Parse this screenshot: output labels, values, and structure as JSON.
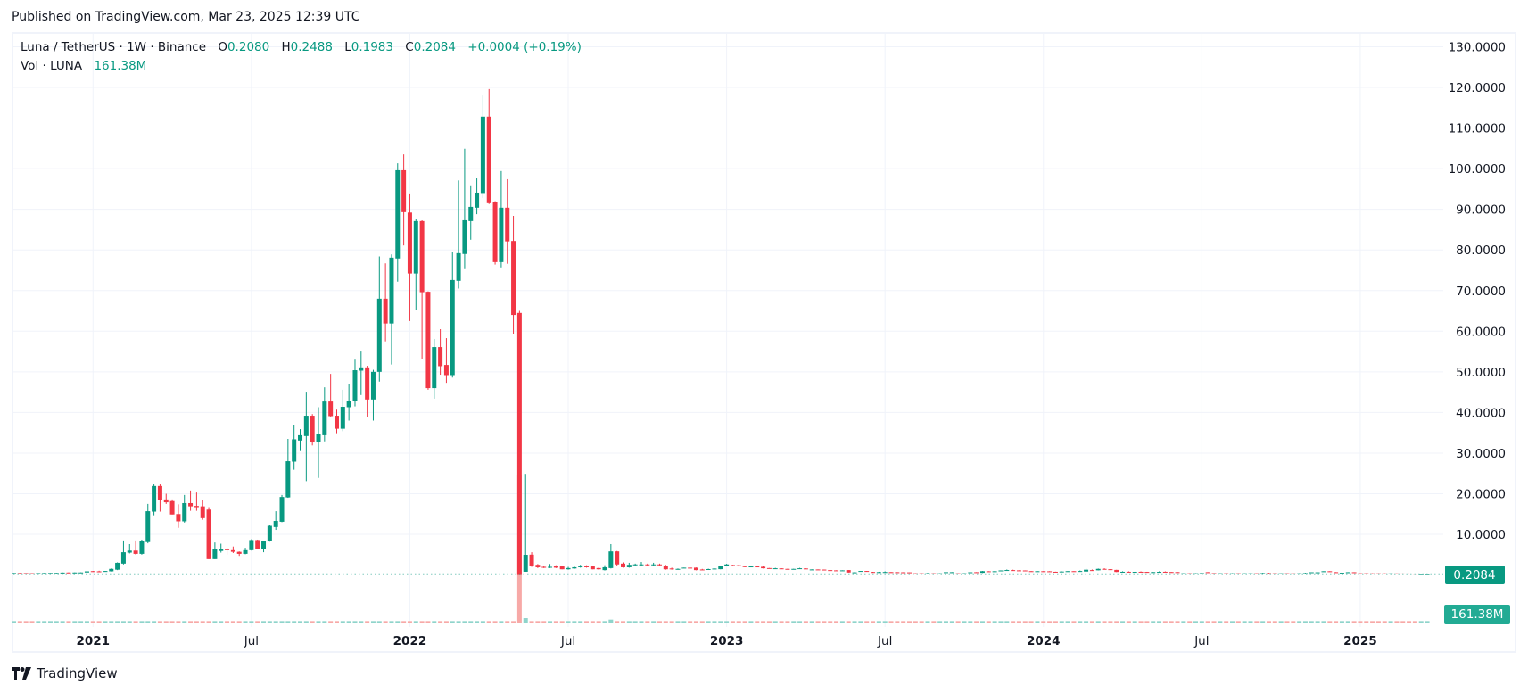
{
  "header": {
    "published": "Published on TradingView.com, Mar 23, 2025 12:39 UTC"
  },
  "legend": {
    "symbol": "Luna / TetherUS · 1W · Binance",
    "o_label": "O",
    "o_value": "0.2080",
    "h_label": "H",
    "h_value": "0.2488",
    "l_label": "L",
    "l_value": "0.1983",
    "c_label": "C",
    "c_value": "0.2084",
    "change": "+0.0004 (+0.19%)",
    "vol_label": "Vol · LUNA",
    "vol_value": "161.38M"
  },
  "price_badge": {
    "text": "0.2084",
    "color": "#089981"
  },
  "volume_badge": {
    "text": "161.38M",
    "color": "#22ab94"
  },
  "brand": {
    "name": "TradingView"
  },
  "colors": {
    "up": "#089981",
    "down": "#f23645",
    "vol_up": "#8fd4cb",
    "vol_down": "#f7a9a7",
    "grid": "#f0f3fa"
  },
  "chart_data": {
    "type": "candlestick",
    "title": "Luna / TetherUS · 1W · Binance",
    "interval": "1W",
    "ylim": [
      0,
      130
    ],
    "y_ticks": [
      "130.0000",
      "120.0000",
      "110.0000",
      "100.0000",
      "90.0000",
      "80.0000",
      "70.0000",
      "60.0000",
      "50.0000",
      "40.0000",
      "30.0000",
      "20.0000",
      "10.0000"
    ],
    "y_tick_values": [
      130,
      120,
      110,
      100,
      90,
      80,
      70,
      60,
      50,
      40,
      30,
      20,
      10
    ],
    "x_ticks": [
      {
        "label": "2021",
        "candle": 13,
        "year": true
      },
      {
        "label": "Jul",
        "candle": 39,
        "year": false
      },
      {
        "label": "2022",
        "candle": 65,
        "year": true
      },
      {
        "label": "Jul",
        "candle": 91,
        "year": false
      },
      {
        "label": "2023",
        "candle": 117,
        "year": true
      },
      {
        "label": "Jul",
        "candle": 143,
        "year": false
      },
      {
        "label": "2024",
        "candle": 169,
        "year": true
      },
      {
        "label": "Jul",
        "candle": 195,
        "year": false
      },
      {
        "label": "2025",
        "candle": 221,
        "year": true
      }
    ],
    "last_price": 0.2084,
    "volume_default": 1,
    "volume_overrides": {
      "83": 100,
      "84": 3,
      "98": 2
    },
    "candles_ohlc": [
      [
        0.45,
        0.5,
        0.42,
        0.48
      ],
      [
        0.48,
        0.5,
        0.42,
        0.44
      ],
      [
        0.46,
        0.48,
        0.4,
        0.42
      ],
      [
        0.44,
        0.46,
        0.38,
        0.4
      ],
      [
        0.4,
        0.48,
        0.38,
        0.46
      ],
      [
        0.44,
        0.5,
        0.42,
        0.48
      ],
      [
        0.46,
        0.5,
        0.44,
        0.49
      ],
      [
        0.48,
        0.52,
        0.46,
        0.5
      ],
      [
        0.5,
        0.62,
        0.48,
        0.6
      ],
      [
        0.62,
        0.64,
        0.56,
        0.58
      ],
      [
        0.58,
        0.64,
        0.56,
        0.62
      ],
      [
        0.6,
        0.66,
        0.58,
        0.63
      ],
      [
        0.62,
        0.95,
        0.6,
        0.9
      ],
      [
        0.95,
        1.0,
        0.78,
        0.82
      ],
      [
        0.9,
        1.05,
        0.8,
        0.86
      ],
      [
        0.86,
        1.0,
        0.82,
        0.98
      ],
      [
        0.9,
        1.6,
        0.86,
        1.5
      ],
      [
        1.3,
        3.1,
        1.2,
        3.0
      ],
      [
        2.8,
        8.5,
        2.6,
        5.6
      ],
      [
        5.5,
        7.6,
        5.3,
        6.0
      ],
      [
        6.0,
        8.5,
        5.0,
        5.2
      ],
      [
        5.2,
        8.7,
        5.0,
        8.3
      ],
      [
        8.1,
        17.5,
        7.8,
        15.7
      ],
      [
        15.6,
        22.3,
        14.7,
        21.9
      ],
      [
        21.9,
        22.3,
        15.6,
        18.4
      ],
      [
        18.6,
        20.0,
        17.5,
        17.9
      ],
      [
        18.2,
        18.6,
        14.9,
        14.9
      ],
      [
        15.0,
        17.4,
        11.6,
        13.2
      ],
      [
        13.2,
        19.7,
        12.9,
        17.7
      ],
      [
        17.7,
        20.8,
        15.8,
        16.9
      ],
      [
        17.0,
        20.3,
        15.8,
        16.7
      ],
      [
        16.9,
        18.5,
        13.6,
        14.0
      ],
      [
        16.1,
        16.7,
        3.9,
        3.9
      ],
      [
        3.9,
        8.0,
        3.9,
        6.3
      ],
      [
        5.9,
        7.7,
        5.5,
        6.3
      ],
      [
        6.4,
        6.7,
        5.0,
        6.1
      ],
      [
        6.1,
        7.0,
        5.4,
        5.7
      ],
      [
        5.7,
        5.8,
        4.7,
        5.2
      ],
      [
        5.2,
        6.7,
        5.1,
        6.1
      ],
      [
        6.1,
        8.8,
        6.0,
        8.6
      ],
      [
        8.6,
        8.7,
        6.3,
        6.4
      ],
      [
        6.4,
        8.4,
        5.6,
        8.3
      ],
      [
        8.3,
        12.3,
        8.2,
        12.1
      ],
      [
        11.8,
        15.7,
        11.1,
        13.3
      ],
      [
        13.1,
        19.7,
        13.0,
        19.2
      ],
      [
        19.1,
        33.5,
        19.0,
        28.0
      ],
      [
        27.9,
        36.9,
        25.9,
        33.4
      ],
      [
        33.1,
        35.9,
        30.5,
        34.4
      ],
      [
        34.2,
        44.9,
        23.1,
        39.2
      ],
      [
        39.2,
        39.6,
        31.9,
        32.7
      ],
      [
        32.7,
        41.3,
        23.9,
        34.6
      ],
      [
        34.4,
        46.2,
        32.9,
        42.7
      ],
      [
        42.7,
        49.5,
        39.0,
        39.1
      ],
      [
        39.2,
        40.7,
        34.9,
        36.0
      ],
      [
        36.0,
        45.6,
        35.4,
        41.4
      ],
      [
        41.3,
        46.9,
        38.0,
        42.9
      ],
      [
        42.8,
        53.0,
        41.5,
        50.4
      ],
      [
        50.3,
        55.0,
        44.3,
        51.1
      ],
      [
        51.1,
        51.5,
        38.8,
        43.2
      ],
      [
        43.2,
        50.5,
        38.0,
        50.0
      ],
      [
        50.0,
        78.4,
        47.6,
        68.0
      ],
      [
        68.0,
        76.7,
        57.5,
        61.9
      ],
      [
        61.9,
        78.9,
        51.8,
        78.1
      ],
      [
        77.9,
        101.3,
        72.2,
        99.6
      ],
      [
        99.6,
        103.5,
        81.1,
        89.3
      ],
      [
        89.2,
        93.9,
        62.5,
        74.2
      ],
      [
        74.2,
        87.6,
        65.2,
        87.1
      ],
      [
        87.1,
        87.3,
        53.1,
        69.6
      ],
      [
        69.7,
        69.8,
        45.6,
        46.0
      ],
      [
        46.0,
        58.1,
        43.4,
        56.1
      ],
      [
        56.1,
        60.5,
        49.3,
        51.4
      ],
      [
        51.7,
        58.3,
        47.3,
        49.2
      ],
      [
        49.2,
        79.5,
        48.6,
        72.6
      ],
      [
        72.4,
        97.1,
        70.5,
        79.2
      ],
      [
        79.0,
        104.9,
        75.5,
        87.3
      ],
      [
        87.1,
        95.9,
        82.5,
        90.6
      ],
      [
        90.4,
        97.6,
        88.8,
        94.1
      ],
      [
        94.0,
        118.0,
        92.8,
        112.8
      ],
      [
        112.8,
        119.6,
        91.3,
        91.5
      ],
      [
        91.7,
        92.0,
        76.4,
        77.0
      ],
      [
        77.0,
        99.4,
        75.7,
        90.4
      ],
      [
        90.4,
        97.4,
        76.6,
        82.1
      ],
      [
        82.2,
        88.4,
        59.4,
        64.0
      ],
      [
        64.5,
        65.0,
        0.0,
        0.0
      ],
      [
        0.8,
        24.9,
        0.8,
        4.96
      ],
      [
        5.0,
        5.6,
        2.0,
        2.3
      ],
      [
        2.5,
        2.7,
        1.7,
        1.9
      ],
      [
        2.0,
        2.2,
        1.7,
        1.8
      ],
      [
        1.8,
        2.7,
        1.7,
        2.0
      ],
      [
        2.1,
        2.4,
        1.7,
        1.8
      ],
      [
        2.1,
        2.2,
        1.4,
        1.4
      ],
      [
        1.4,
        2.0,
        1.3,
        1.7
      ],
      [
        1.6,
        2.1,
        1.5,
        1.9
      ],
      [
        1.9,
        2.5,
        1.8,
        2.2
      ],
      [
        2.2,
        2.4,
        1.8,
        1.9
      ],
      [
        2.1,
        2.2,
        1.4,
        1.4
      ],
      [
        1.7,
        1.8,
        1.3,
        1.4
      ],
      [
        1.2,
        2.4,
        1.1,
        1.9
      ],
      [
        1.7,
        7.6,
        1.6,
        5.8
      ],
      [
        5.8,
        5.9,
        2.3,
        2.6
      ],
      [
        2.8,
        3.1,
        1.8,
        1.9
      ],
      [
        1.9,
        3.0,
        1.8,
        2.5
      ],
      [
        2.4,
        2.8,
        2.3,
        2.6
      ],
      [
        2.4,
        3.2,
        2.2,
        2.6
      ],
      [
        2.6,
        2.8,
        2.3,
        2.4
      ],
      [
        2.4,
        3.0,
        2.3,
        2.6
      ],
      [
        2.6,
        2.8,
        2.3,
        2.4
      ],
      [
        2.2,
        2.5,
        1.3,
        1.4
      ],
      [
        1.6,
        1.8,
        1.3,
        1.4
      ],
      [
        1.4,
        1.6,
        1.3,
        1.5
      ],
      [
        1.75,
        1.82,
        1.7,
        1.8
      ],
      [
        1.8,
        1.85,
        1.75,
        1.78
      ],
      [
        1.8,
        1.85,
        1.15,
        1.2
      ],
      [
        1.35,
        1.5,
        1.25,
        1.3
      ],
      [
        1.3,
        1.55,
        1.25,
        1.45
      ],
      [
        1.45,
        1.6,
        1.4,
        1.58
      ],
      [
        1.43,
        2.3,
        1.4,
        2.3
      ],
      [
        2.3,
        2.75,
        2.2,
        2.6
      ],
      [
        2.45,
        2.5,
        2.35,
        2.4
      ],
      [
        2.4,
        2.55,
        2.1,
        2.2
      ],
      [
        2.25,
        2.3,
        1.9,
        1.95
      ],
      [
        2.0,
        2.15,
        1.95,
        2.1
      ],
      [
        2.1,
        2.15,
        2.0,
        2.02
      ],
      [
        2.02,
        2.2,
        1.6,
        1.65
      ],
      [
        1.7,
        1.72,
        1.55,
        1.58
      ],
      [
        1.55,
        1.75,
        1.5,
        1.65
      ],
      [
        1.62,
        1.65,
        1.55,
        1.58
      ],
      [
        1.5,
        1.52,
        1.35,
        1.36
      ],
      [
        1.45,
        1.52,
        1.4,
        1.5
      ],
      [
        1.55,
        1.75,
        1.5,
        1.65
      ],
      [
        1.6,
        1.62,
        1.5,
        1.52
      ],
      [
        1.3,
        1.4,
        1.28,
        1.36
      ],
      [
        1.36,
        1.38,
        1.3,
        1.33
      ],
      [
        1.33,
        1.35,
        1.2,
        1.28
      ],
      [
        1.2,
        1.22,
        1.1,
        1.14
      ],
      [
        1.14,
        1.16,
        1.1,
        1.12
      ],
      [
        1.1,
        1.16,
        1.08,
        1.14
      ],
      [
        1.21,
        1.22,
        0.6,
        0.62
      ],
      [
        0.6,
        0.7,
        0.58,
        0.66
      ],
      [
        0.9,
        1.0,
        0.85,
        0.99
      ],
      [
        0.99,
        1.0,
        0.9,
        0.95
      ],
      [
        0.75,
        0.78,
        0.68,
        0.7
      ],
      [
        0.65,
        0.8,
        0.62,
        0.72
      ],
      [
        0.7,
        0.9,
        0.68,
        0.74
      ],
      [
        0.72,
        0.75,
        0.66,
        0.7
      ],
      [
        0.7,
        0.72,
        0.65,
        0.68
      ],
      [
        0.68,
        0.7,
        0.64,
        0.66
      ],
      [
        0.66,
        0.68,
        0.62,
        0.64
      ],
      [
        0.42,
        0.45,
        0.38,
        0.4
      ],
      [
        0.42,
        0.44,
        0.36,
        0.4
      ],
      [
        0.38,
        0.55,
        0.35,
        0.42
      ],
      [
        0.42,
        0.44,
        0.36,
        0.4
      ],
      [
        0.38,
        0.42,
        0.3,
        0.41
      ],
      [
        0.62,
        0.66,
        0.6,
        0.7
      ],
      [
        0.66,
        0.72,
        0.64,
        0.7
      ],
      [
        0.42,
        0.44,
        0.38,
        0.4
      ],
      [
        0.38,
        0.45,
        0.3,
        0.42
      ],
      [
        0.62,
        0.66,
        0.6,
        0.68
      ],
      [
        0.7,
        0.72,
        0.65,
        0.68
      ],
      [
        0.55,
        1.0,
        0.5,
        0.95
      ],
      [
        0.92,
        0.94,
        0.88,
        0.9
      ],
      [
        0.9,
        0.95,
        0.88,
        0.93
      ],
      [
        1.1,
        1.14,
        1.08,
        1.12
      ],
      [
        1.18,
        1.35,
        1.15,
        1.22
      ],
      [
        1.2,
        1.3,
        1.1,
        1.14
      ],
      [
        1.14,
        1.16,
        1.1,
        1.12
      ],
      [
        1.12,
        1.14,
        1.08,
        1.1
      ],
      [
        0.95,
        0.97,
        0.9,
        0.92
      ],
      [
        0.9,
        0.96,
        0.88,
        0.94
      ],
      [
        0.94,
        0.96,
        0.88,
        0.9
      ],
      [
        0.92,
        0.95,
        0.78,
        0.8
      ],
      [
        0.8,
        0.82,
        0.76,
        0.78
      ],
      [
        0.8,
        0.9,
        0.78,
        0.86
      ],
      [
        0.88,
        0.96,
        0.86,
        0.95
      ],
      [
        0.95,
        0.97,
        0.92,
        0.94
      ],
      [
        0.92,
        1.1,
        0.9,
        0.98
      ],
      [
        0.85,
        1.55,
        0.83,
        1.3
      ],
      [
        1.2,
        1.35,
        1.1,
        1.15
      ],
      [
        1.15,
        1.58,
        1.12,
        1.5
      ],
      [
        1.5,
        1.65,
        1.45,
        1.48
      ],
      [
        1.42,
        1.45,
        1.3,
        1.35
      ],
      [
        1.25,
        1.28,
        0.72,
        0.75
      ],
      [
        0.75,
        0.92,
        0.7,
        0.8
      ],
      [
        0.8,
        0.9,
        0.74,
        0.77
      ],
      [
        0.75,
        0.8,
        0.72,
        0.78
      ],
      [
        0.8,
        0.9,
        0.74,
        0.77
      ],
      [
        0.77,
        0.8,
        0.7,
        0.72
      ],
      [
        0.7,
        0.74,
        0.68,
        0.72
      ],
      [
        0.72,
        0.9,
        0.7,
        0.78
      ],
      [
        0.8,
        0.9,
        0.74,
        0.77
      ],
      [
        0.74,
        0.76,
        0.7,
        0.72
      ],
      [
        0.72,
        0.74,
        0.68,
        0.7
      ],
      [
        0.4,
        0.44,
        0.38,
        0.42
      ],
      [
        0.42,
        0.44,
        0.36,
        0.4
      ],
      [
        0.38,
        0.44,
        0.36,
        0.42
      ],
      [
        0.4,
        0.55,
        0.38,
        0.46
      ],
      [
        0.7,
        0.72,
        0.66,
        0.68
      ],
      [
        0.45,
        0.47,
        0.4,
        0.42
      ],
      [
        0.4,
        0.44,
        0.38,
        0.42
      ],
      [
        0.42,
        0.44,
        0.38,
        0.4
      ],
      [
        0.38,
        0.42,
        0.36,
        0.41
      ],
      [
        0.42,
        0.44,
        0.38,
        0.4
      ],
      [
        0.38,
        0.42,
        0.36,
        0.41
      ],
      [
        0.39,
        0.42,
        0.37,
        0.41
      ],
      [
        0.42,
        0.44,
        0.38,
        0.4
      ],
      [
        0.38,
        0.55,
        0.36,
        0.46
      ],
      [
        0.46,
        0.55,
        0.4,
        0.42
      ],
      [
        0.42,
        0.44,
        0.38,
        0.4
      ],
      [
        0.38,
        0.42,
        0.36,
        0.41
      ],
      [
        0.42,
        0.44,
        0.38,
        0.4
      ],
      [
        0.4,
        0.42,
        0.37,
        0.39
      ],
      [
        0.38,
        0.42,
        0.36,
        0.41
      ],
      [
        0.4,
        0.55,
        0.38,
        0.46
      ],
      [
        0.62,
        0.66,
        0.6,
        0.68
      ],
      [
        0.64,
        0.68,
        0.62,
        0.67
      ],
      [
        0.9,
        0.94,
        0.88,
        0.93
      ],
      [
        0.93,
        0.95,
        0.88,
        0.9
      ],
      [
        0.7,
        0.72,
        0.66,
        0.68
      ],
      [
        0.5,
        0.7,
        0.48,
        0.55
      ],
      [
        0.66,
        0.7,
        0.64,
        0.69
      ],
      [
        0.69,
        0.7,
        0.64,
        0.66
      ],
      [
        0.42,
        0.44,
        0.38,
        0.4
      ],
      [
        0.42,
        0.44,
        0.36,
        0.39
      ],
      [
        0.4,
        0.42,
        0.36,
        0.38
      ],
      [
        0.4,
        0.42,
        0.36,
        0.38
      ],
      [
        0.39,
        0.41,
        0.35,
        0.37
      ],
      [
        0.36,
        0.4,
        0.34,
        0.39
      ],
      [
        0.38,
        0.4,
        0.33,
        0.35
      ],
      [
        0.36,
        0.38,
        0.32,
        0.34
      ],
      [
        0.35,
        0.37,
        0.3,
        0.32
      ],
      [
        0.33,
        0.35,
        0.29,
        0.3
      ],
      [
        0.2,
        0.24,
        0.19,
        0.21
      ],
      [
        0.208,
        0.2488,
        0.1983,
        0.2084
      ]
    ]
  }
}
